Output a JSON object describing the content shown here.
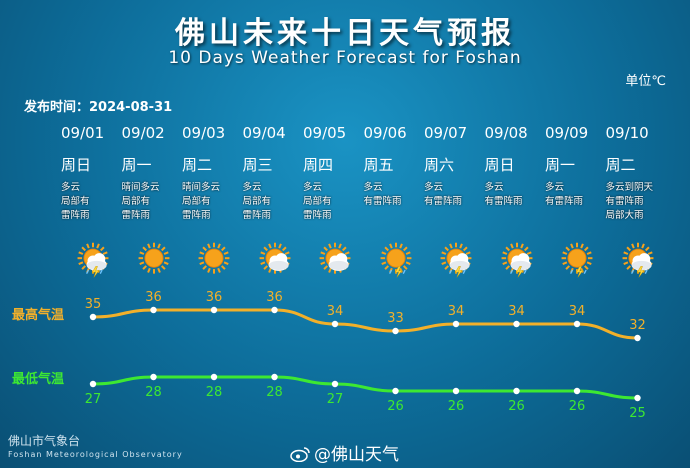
{
  "title_cn": "佛山未来十日天气预报",
  "title_en": "10 Days Weather Forecast for Foshan",
  "unit": "单位℃",
  "publish_time": "发布时间：2024-08-31",
  "days": [
    {
      "date": "09/01",
      "weekday": "周日",
      "desc": [
        "多云",
        "局部有",
        "雷阵雨"
      ],
      "icon": "sun-cloud-thunder-icon",
      "high": 35,
      "low": 27
    },
    {
      "date": "09/02",
      "weekday": "周一",
      "desc": [
        "晴间多云",
        "局部有",
        "雷阵雨"
      ],
      "icon": "sun-icon",
      "high": 36,
      "low": 28
    },
    {
      "date": "09/03",
      "weekday": "周二",
      "desc": [
        "晴间多云",
        "局部有",
        "雷阵雨"
      ],
      "icon": "sun-icon",
      "high": 36,
      "low": 28
    },
    {
      "date": "09/04",
      "weekday": "周三",
      "desc": [
        "多云",
        "局部有",
        "雷阵雨"
      ],
      "icon": "sun-cloud-icon",
      "high": 36,
      "low": 28
    },
    {
      "date": "09/05",
      "weekday": "周四",
      "desc": [
        "多云",
        "局部有",
        "雷阵雨"
      ],
      "icon": "sun-cloud-icon",
      "high": 34,
      "low": 27
    },
    {
      "date": "09/06",
      "weekday": "周五",
      "desc": [
        "多云",
        "有雷阵雨"
      ],
      "icon": "sun-thunder-icon",
      "high": 33,
      "low": 26
    },
    {
      "date": "09/07",
      "weekday": "周六",
      "desc": [
        "多云",
        "有雷阵雨"
      ],
      "icon": "sun-cloud-thunder-icon",
      "high": 34,
      "low": 26
    },
    {
      "date": "09/08",
      "weekday": "周日",
      "desc": [
        "多云",
        "有雷阵雨"
      ],
      "icon": "sun-cloud-thunder-icon",
      "high": 34,
      "low": 26
    },
    {
      "date": "09/09",
      "weekday": "周一",
      "desc": [
        "多云",
        "有雷阵雨"
      ],
      "icon": "sun-thunder-icon",
      "high": 34,
      "low": 26
    },
    {
      "date": "09/10",
      "weekday": "周二",
      "desc": [
        "多云到阴天",
        "有雷阵雨",
        "局部大雨"
      ],
      "icon": "sun-cloud-thunder-icon",
      "high": 32,
      "low": 25
    }
  ],
  "high_label": "最高气温",
  "low_label": "最低气温",
  "footer_cn": "佛山市气象台",
  "footer_en": "Foshan Meteorological Observatory",
  "weibo": "@佛山天气",
  "colors": {
    "high": "#f2b02a",
    "low": "#3de832",
    "sun": "#f6a21b",
    "cloud": "#ffffff"
  }
}
